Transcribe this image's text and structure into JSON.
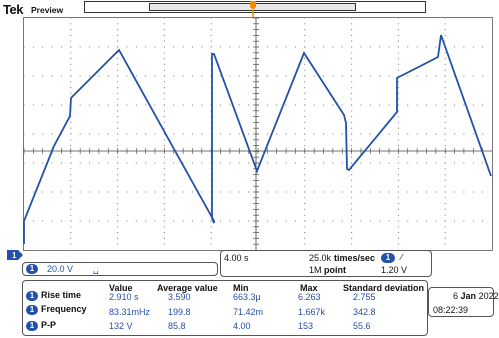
{
  "header": {
    "brand": "Tek",
    "mode": "Preview"
  },
  "trace_color": "#2451a8",
  "channel_panel": {
    "badge": "1",
    "scale": "20.0 V",
    "coupling_symbol": "␣"
  },
  "horizontal_panel": {
    "time_div": "4.00 s",
    "sample_rate": "25.0k",
    "sample_rate_unit": "times/sec",
    "record_length": "1M",
    "record_length_unit": "point",
    "trigger_badge": "1",
    "trigger_slope": "∕",
    "trigger_level": "1.20 V"
  },
  "measurements": {
    "headers": [
      "Value",
      "Average value",
      "Min",
      "Max",
      "Standard deviation"
    ],
    "rows": [
      {
        "badge": "1",
        "label": "Rise time",
        "values": [
          "2.910 s",
          "3.590",
          "663.3μ",
          "6.263",
          "2.755"
        ]
      },
      {
        "badge": "1",
        "label": "Frequency",
        "values": [
          "83.31mHz",
          "199.8",
          "71.42m",
          "1.667k",
          "342.8"
        ]
      },
      {
        "badge": "1",
        "label": "P-P",
        "values": [
          "132 V",
          "85.8",
          "4.00",
          "153",
          "55.6"
        ]
      }
    ]
  },
  "datetime": {
    "day": "6",
    "month": "Jan",
    "year": "2022",
    "time": "08:22:39"
  },
  "ground_marker": "1"
}
